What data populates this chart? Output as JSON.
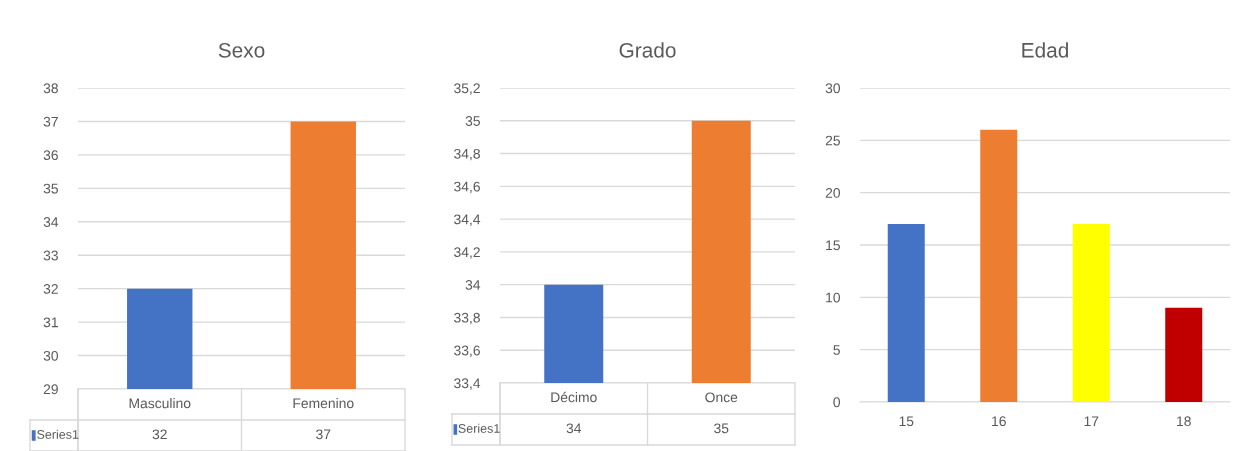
{
  "chart_data": [
    {
      "type": "bar",
      "title": "Sexo",
      "categories": [
        "Masculino",
        "Femenino"
      ],
      "series": [
        {
          "name": "Series1",
          "color": "#4472c4",
          "colors": [
            "#4472c4",
            "#ed7d31"
          ],
          "values": [
            32,
            37
          ]
        }
      ],
      "ylim": [
        29,
        38
      ],
      "yticks": [
        29,
        30,
        31,
        32,
        33,
        34,
        35,
        36,
        37,
        38
      ],
      "grid": "y",
      "data_labels": true
    },
    {
      "type": "bar",
      "title": "Grado",
      "categories": [
        "Décimo",
        "Once"
      ],
      "series": [
        {
          "name": "Series1",
          "color": "#4472c4",
          "colors": [
            "#4472c4",
            "#ed7d31"
          ],
          "values": [
            34,
            35
          ]
        }
      ],
      "ylim": [
        33.4,
        35.2
      ],
      "yticks": [
        {
          "value": 33.4,
          "label": "33,4"
        },
        {
          "value": 33.6,
          "label": "33,6"
        },
        {
          "value": 33.8,
          "label": "33,8"
        },
        34,
        {
          "value": 34.2,
          "label": "34,2"
        },
        {
          "value": 34.4,
          "label": "34,4"
        },
        {
          "value": 34.6,
          "label": "34,6"
        },
        {
          "value": 34.8,
          "label": "34,8"
        },
        35,
        {
          "value": 35.2,
          "label": "35,2"
        }
      ],
      "grid": "y",
      "data_labels": true
    },
    {
      "type": "bar",
      "title": "Edad",
      "categories": [
        "15",
        "16",
        "17",
        "18"
      ],
      "values": [
        17,
        26,
        17,
        9
      ],
      "colors": [
        "#4472c4",
        "#ed7d31",
        "#ffff00",
        "#c00000"
      ],
      "ylim": [
        0,
        30
      ],
      "yticks": [
        0,
        5,
        10,
        15,
        20,
        25,
        30
      ],
      "grid": "y"
    }
  ]
}
